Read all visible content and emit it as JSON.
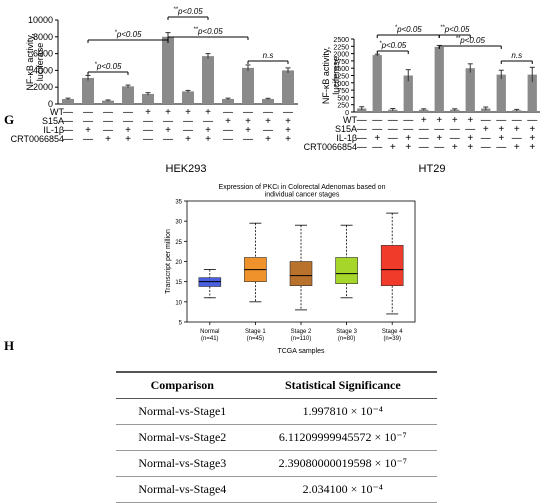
{
  "panels": {
    "g": "G",
    "h": "H"
  },
  "chart_data": [
    {
      "type": "bar",
      "title": "HEK293",
      "ylabel": "NF-κB activity, luciferase",
      "ylim": [
        0,
        10000
      ],
      "yticks": [
        0,
        2000,
        4000,
        6000,
        8000,
        10000
      ],
      "conditions": [
        "WT",
        "S15A",
        "IL-1β",
        "CRT0066854"
      ],
      "columns": [
        {
          "WT": "—",
          "S15A": "—",
          "IL-1β": "—",
          "CRT0066854": "—"
        },
        {
          "WT": "—",
          "S15A": "—",
          "IL-1β": "+",
          "CRT0066854": "—"
        },
        {
          "WT": "—",
          "S15A": "—",
          "IL-1β": "—",
          "CRT0066854": "+"
        },
        {
          "WT": "—",
          "S15A": "—",
          "IL-1β": "+",
          "CRT0066854": "+"
        },
        {
          "WT": "+",
          "S15A": "—",
          "IL-1β": "—",
          "CRT0066854": "—"
        },
        {
          "WT": "+",
          "S15A": "—",
          "IL-1β": "+",
          "CRT0066854": "—"
        },
        {
          "WT": "+",
          "S15A": "—",
          "IL-1β": "—",
          "CRT0066854": "+"
        },
        {
          "WT": "+",
          "S15A": "—",
          "IL-1β": "+",
          "CRT0066854": "+"
        },
        {
          "WT": "—",
          "S15A": "+",
          "IL-1β": "—",
          "CRT0066854": "—"
        },
        {
          "WT": "—",
          "S15A": "+",
          "IL-1β": "+",
          "CRT0066854": "—"
        },
        {
          "WT": "—",
          "S15A": "+",
          "IL-1β": "—",
          "CRT0066854": "+"
        },
        {
          "WT": "—",
          "S15A": "+",
          "IL-1β": "+",
          "CRT0066854": "+"
        }
      ],
      "values": [
        600,
        3100,
        400,
        2100,
        1200,
        8000,
        1500,
        5700,
        600,
        4300,
        600,
        4000
      ],
      "errors": [
        100,
        300,
        80,
        150,
        150,
        500,
        120,
        300,
        100,
        350,
        80,
        300
      ],
      "significance": [
        {
          "from": 1,
          "to": 3,
          "label": "*p<0.05"
        },
        {
          "from": 1,
          "to": 5,
          "label": "*p<0.05"
        },
        {
          "from": 5,
          "to": 7,
          "label": "**p<0.05"
        },
        {
          "from": 5,
          "to": 9,
          "label": "**p<0.05"
        },
        {
          "from": 9,
          "to": 11,
          "label": "n.s"
        }
      ]
    },
    {
      "type": "bar",
      "title": "HT29",
      "ylabel": "NF-κB activity, luciferase",
      "ylim": [
        0,
        2500
      ],
      "yticks": [
        0,
        250,
        500,
        750,
        1000,
        1250,
        1500,
        1750,
        2000,
        2250,
        2500
      ],
      "conditions": [
        "WT",
        "S15A",
        "IL-1β",
        "CRT0066854"
      ],
      "columns": [
        {
          "WT": "—",
          "S15A": "—",
          "IL-1β": "—",
          "CRT0066854": "—"
        },
        {
          "WT": "—",
          "S15A": "—",
          "IL-1β": "+",
          "CRT0066854": "—"
        },
        {
          "WT": "—",
          "S15A": "—",
          "IL-1β": "—",
          "CRT0066854": "+"
        },
        {
          "WT": "—",
          "S15A": "—",
          "IL-1β": "+",
          "CRT0066854": "+"
        },
        {
          "WT": "+",
          "S15A": "—",
          "IL-1β": "—",
          "CRT0066854": "—"
        },
        {
          "WT": "+",
          "S15A": "—",
          "IL-1β": "+",
          "CRT0066854": "—"
        },
        {
          "WT": "+",
          "S15A": "—",
          "IL-1β": "—",
          "CRT0066854": "+"
        },
        {
          "WT": "+",
          "S15A": "—",
          "IL-1β": "+",
          "CRT0066854": "+"
        },
        {
          "WT": "—",
          "S15A": "+",
          "IL-1β": "—",
          "CRT0066854": "—"
        },
        {
          "WT": "—",
          "S15A": "+",
          "IL-1β": "+",
          "CRT0066854": "—"
        },
        {
          "WT": "—",
          "S15A": "+",
          "IL-1β": "—",
          "CRT0066854": "+"
        },
        {
          "WT": "—",
          "S15A": "+",
          "IL-1β": "+",
          "CRT0066854": "+"
        }
      ],
      "values": [
        120,
        1950,
        80,
        1250,
        80,
        2230,
        80,
        1500,
        120,
        1280,
        60,
        1280
      ],
      "errors": [
        60,
        30,
        40,
        200,
        30,
        50,
        30,
        150,
        50,
        150,
        30,
        250
      ],
      "significance": [
        {
          "from": 1,
          "to": 3,
          "label": "*p<0.05"
        },
        {
          "from": 1,
          "to": 5,
          "label": "*p<0.05"
        },
        {
          "from": 5,
          "to": 7,
          "label": "**p<0.05"
        },
        {
          "from": 5,
          "to": 9,
          "label": "**p<0.05"
        },
        {
          "from": 9,
          "to": 11,
          "label": "n.s"
        }
      ]
    },
    {
      "type": "box",
      "title": "Expression of PKCι in Colorectal Adenomas based on individual cancer stages",
      "xlabel": "TCGA samples",
      "ylabel": "Transcript per million",
      "ylim": [
        5,
        35
      ],
      "yticks": [
        5,
        10,
        15,
        20,
        25,
        30,
        35
      ],
      "series": [
        {
          "name": "Normal",
          "n": "(n=41)",
          "color": "#4a5fe0",
          "whisker_low": 11,
          "q1": 13.8,
          "median": 15,
          "q3": 16,
          "whisker_high": 18
        },
        {
          "name": "Stage 1",
          "n": "(n=45)",
          "color": "#f0922b",
          "whisker_low": 10,
          "q1": 15,
          "median": 18,
          "q3": 21,
          "whisker_high": 29.5
        },
        {
          "name": "Stage 2",
          "n": "(n=110)",
          "color": "#b8722c",
          "whisker_low": 8,
          "q1": 14,
          "median": 16.5,
          "q3": 20,
          "whisker_high": 29
        },
        {
          "name": "Stage 3",
          "n": "(n=80)",
          "color": "#a6d62a",
          "whisker_low": 11,
          "q1": 14.5,
          "median": 17,
          "q3": 21,
          "whisker_high": 29
        },
        {
          "name": "Stage 4",
          "n": "(n=39)",
          "color": "#f03a2a",
          "whisker_low": 7,
          "q1": 14,
          "median": 18,
          "q3": 24,
          "whisker_high": 32
        }
      ]
    },
    {
      "type": "table",
      "columns": [
        "Comparison",
        "Statistical Significance"
      ],
      "rows": [
        [
          "Normal-vs-Stage1",
          "1.997810 × 10⁻⁴"
        ],
        [
          "Normal-vs-Stage2",
          "6.11209999945572 × 10⁻⁷"
        ],
        [
          "Normal-vs-Stage3",
          "2.39080000019598 × 10⁻⁷"
        ],
        [
          "Normal-vs-Stage4",
          "2.034100 × 10⁻⁴"
        ]
      ]
    }
  ]
}
